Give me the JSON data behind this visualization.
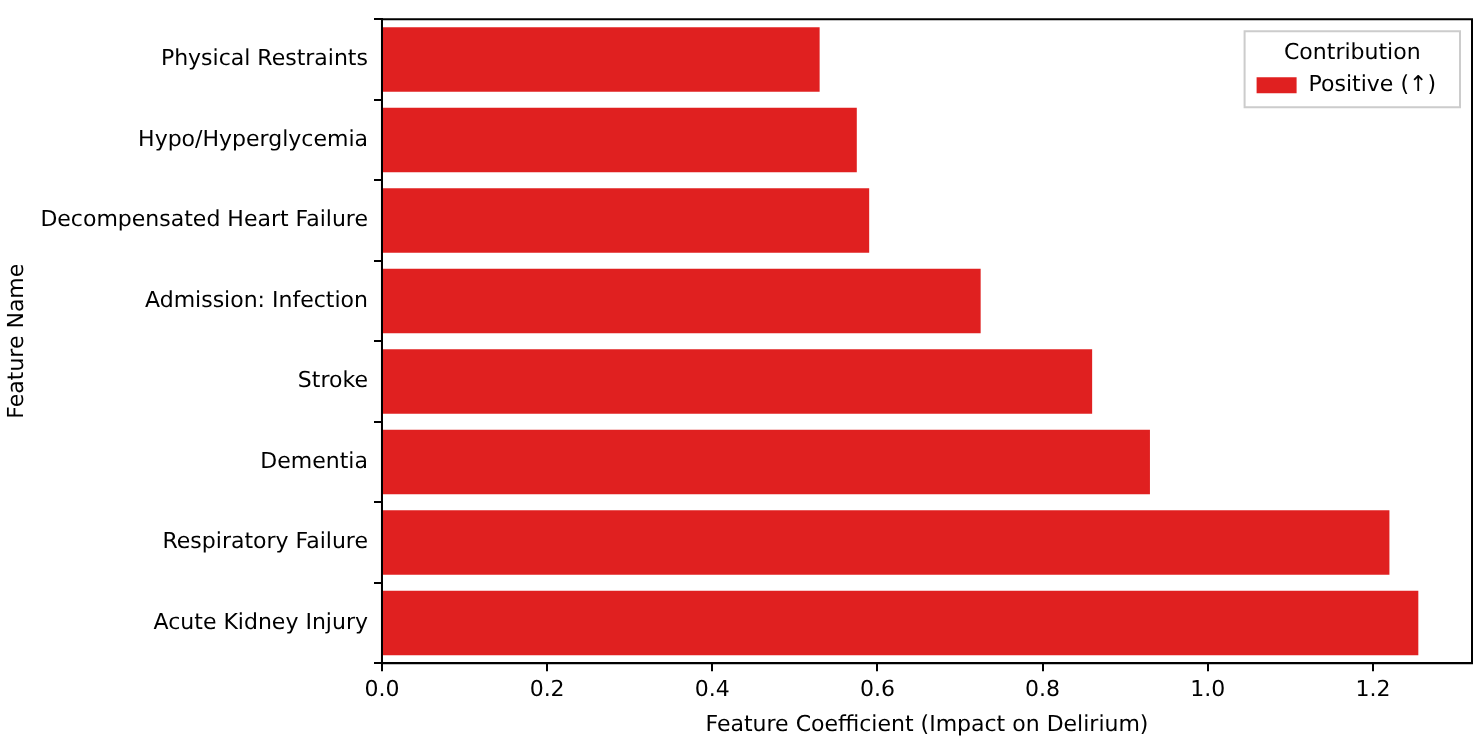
{
  "chart_data": {
    "type": "bar",
    "orientation": "horizontal",
    "xlabel": "Feature Coefficient (Impact on Delirium)",
    "ylabel": "Feature Name",
    "legend_title": "Contribution",
    "legend": "top right",
    "categories": [
      "Physical Restraints",
      "Hypo/Hyperglycemia",
      "Decompensated Heart Failure",
      "Admission: Infection",
      "Stroke",
      "Dementia",
      "Respiratory Failure",
      "Acute Kidney Injury"
    ],
    "series": [
      {
        "name": "Positive (↑)",
        "color": "#e02020",
        "values": [
          0.53,
          0.575,
          0.59,
          0.725,
          0.86,
          0.93,
          1.22,
          1.255
        ]
      }
    ],
    "xlim": [
      0,
      1.32
    ],
    "xticks": [
      {
        "value": 0,
        "label": "0.0"
      },
      {
        "value": 0.2,
        "label": "0.2"
      },
      {
        "value": 0.4,
        "label": "0.4"
      },
      {
        "value": 0.6,
        "label": "0.6"
      },
      {
        "value": 0.8,
        "label": "0.8"
      },
      {
        "value": 1,
        "label": "1.0"
      },
      {
        "value": 1.2,
        "label": "1.2"
      }
    ]
  }
}
